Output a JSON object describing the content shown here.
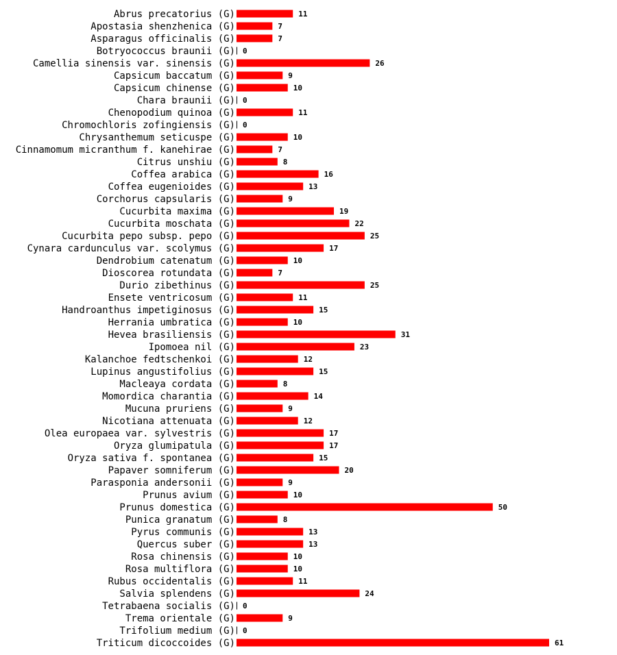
{
  "chart_data": {
    "type": "bar",
    "orientation": "horizontal",
    "title": "",
    "xlabel": "",
    "ylabel": "",
    "xlim": [
      0,
      61
    ],
    "grid": false,
    "bar_color": "#ff0000",
    "categories": [
      "Abrus precatorius (G)",
      "Apostasia shenzhenica (G)",
      "Asparagus officinalis (G)",
      "Botryococcus braunii (G)",
      "Camellia sinensis var. sinensis (G)",
      "Capsicum baccatum (G)",
      "Capsicum chinense (G)",
      "Chara braunii (G)",
      "Chenopodium quinoa (G)",
      "Chromochloris zofingiensis (G)",
      "Chrysanthemum seticuspe (G)",
      "Cinnamomum micranthum f. kanehirae (G)",
      "Citrus unshiu (G)",
      "Coffea arabica (G)",
      "Coffea eugenioides (G)",
      "Corchorus capsularis (G)",
      "Cucurbita maxima (G)",
      "Cucurbita moschata (G)",
      "Cucurbita pepo subsp. pepo (G)",
      "Cynara cardunculus var. scolymus (G)",
      "Dendrobium catenatum (G)",
      "Dioscorea rotundata (G)",
      "Durio zibethinus (G)",
      "Ensete ventricosum (G)",
      "Handroanthus impetiginosus (G)",
      "Herrania umbratica (G)",
      "Hevea brasiliensis (G)",
      "Ipomoea nil (G)",
      "Kalanchoe fedtschenkoi (G)",
      "Lupinus angustifolius (G)",
      "Macleaya cordata (G)",
      "Momordica charantia (G)",
      "Mucuna pruriens (G)",
      "Nicotiana attenuata (G)",
      "Olea europaea var. sylvestris (G)",
      "Oryza glumipatula (G)",
      "Oryza sativa f. spontanea (G)",
      "Papaver somniferum (G)",
      "Parasponia andersonii (G)",
      "Prunus avium (G)",
      "Prunus domestica (G)",
      "Punica granatum (G)",
      "Pyrus communis (G)",
      "Quercus suber (G)",
      "Rosa chinensis (G)",
      "Rosa multiflora (G)",
      "Rubus occidentalis (G)",
      "Salvia splendens (G)",
      "Tetrabaena socialis (G)",
      "Trema orientale (G)",
      "Trifolium medium (G)",
      "Triticum dicoccoides (G)"
    ],
    "values": [
      11,
      7,
      7,
      0,
      26,
      9,
      10,
      0,
      11,
      0,
      10,
      7,
      8,
      16,
      13,
      9,
      19,
      22,
      25,
      17,
      10,
      7,
      25,
      11,
      15,
      10,
      31,
      23,
      12,
      15,
      8,
      14,
      9,
      12,
      17,
      17,
      15,
      20,
      9,
      10,
      50,
      8,
      13,
      13,
      10,
      10,
      11,
      24,
      0,
      9,
      0,
      61
    ]
  }
}
